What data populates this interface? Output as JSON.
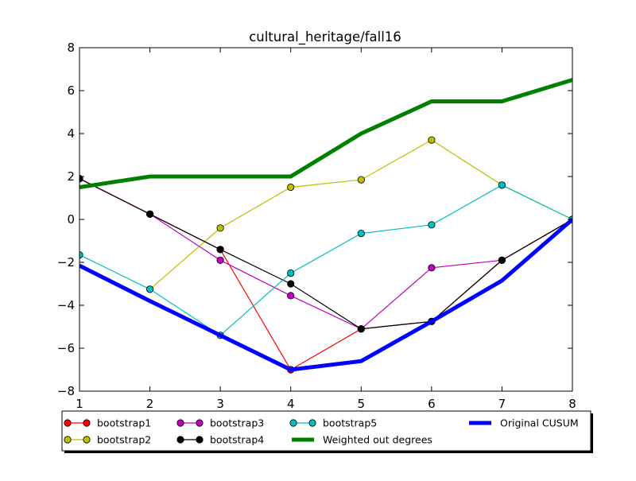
{
  "chart_data": {
    "type": "line",
    "title": "cultural_heritage/fall16",
    "xlabel": "",
    "ylabel": "",
    "xlim": [
      1,
      8
    ],
    "ylim": [
      -8,
      8
    ],
    "x_ticks": [
      1,
      2,
      3,
      4,
      5,
      6,
      7,
      8
    ],
    "y_ticks": [
      -8,
      -6,
      -4,
      -2,
      0,
      2,
      4,
      6,
      8
    ],
    "grid": false,
    "legend_position": "below plot, 4 columns, with shadow",
    "x": [
      1,
      2,
      3,
      4,
      5,
      6,
      7,
      8
    ],
    "series": [
      {
        "name": "bootstrap1",
        "color": "#ff0000",
        "style": "line-marker",
        "values": [
          1.9,
          0.25,
          -1.4,
          -7.0,
          -5.1,
          -4.75,
          -1.9,
          0.0
        ]
      },
      {
        "name": "bootstrap2",
        "color": "#bfbf00",
        "style": "line-marker",
        "values": [
          null,
          -3.25,
          -0.4,
          1.5,
          1.85,
          3.7,
          1.6,
          0.0
        ]
      },
      {
        "name": "bootstrap3",
        "color": "#bf00bf",
        "style": "line-marker",
        "values": [
          1.9,
          0.25,
          -1.9,
          -3.55,
          -5.1,
          -2.25,
          -1.9,
          0.0
        ]
      },
      {
        "name": "bootstrap4",
        "color": "#000000",
        "style": "line-marker",
        "values": [
          1.9,
          0.25,
          -1.4,
          -3.0,
          -5.1,
          -4.75,
          -1.9,
          0.0
        ]
      },
      {
        "name": "bootstrap5",
        "color": "#00bfbf",
        "style": "line-marker",
        "values": [
          -1.65,
          -3.25,
          -5.4,
          -2.5,
          -0.65,
          -0.25,
          1.6,
          0.0
        ]
      },
      {
        "name": "Weighted out degrees",
        "color": "#008000",
        "style": "thick-line",
        "values": [
          1.5,
          2.0,
          2.0,
          2.0,
          4.0,
          5.5,
          5.5,
          6.5
        ]
      },
      {
        "name": "Original CUSUM",
        "color": "#0000ff",
        "style": "thick-line",
        "values": [
          -2.15,
          -3.8,
          -5.4,
          -7.0,
          -6.6,
          -4.75,
          -2.85,
          0.0
        ]
      }
    ]
  }
}
